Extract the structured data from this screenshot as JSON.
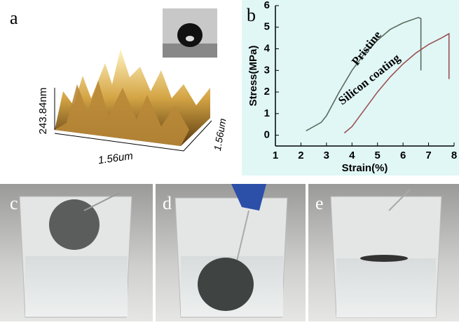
{
  "panels": {
    "a": {
      "label": "a",
      "z_label": "243.84nm",
      "x_label": "1.56um",
      "y_label": "1.56um"
    },
    "c": {
      "label": "c"
    },
    "d": {
      "label": "d"
    },
    "e": {
      "label": "e"
    }
  },
  "chart_data": {
    "type": "line",
    "label": "b",
    "x_label": "Strain(%)",
    "y_label": "Stress(MPa)",
    "xlim": [
      1,
      8
    ],
    "xticks": [
      1,
      2,
      3,
      4,
      5,
      6,
      7,
      8
    ],
    "ylim": [
      -0.5,
      6
    ],
    "yticks": [
      0,
      1,
      2,
      3,
      4,
      5,
      6
    ],
    "series": [
      {
        "name": "Pristine",
        "color": "#5d6b5d",
        "x": [
          2.2,
          2.8,
          3.0,
          3.5,
          4.0,
          4.5,
          5.0,
          5.5,
          6.0,
          6.6,
          6.7,
          6.7
        ],
        "values": [
          0.2,
          0.6,
          0.9,
          2.0,
          3.0,
          3.8,
          4.4,
          4.9,
          5.2,
          5.45,
          5.4,
          3.0
        ]
      },
      {
        "name": "Silicon coating",
        "color": "#9c5050",
        "x": [
          3.7,
          4.0,
          4.5,
          5.0,
          5.5,
          6.0,
          6.5,
          7.0,
          7.5,
          7.8,
          7.8
        ],
        "values": [
          0.1,
          0.4,
          1.2,
          2.0,
          2.7,
          3.3,
          3.8,
          4.2,
          4.5,
          4.7,
          2.6
        ]
      }
    ]
  }
}
